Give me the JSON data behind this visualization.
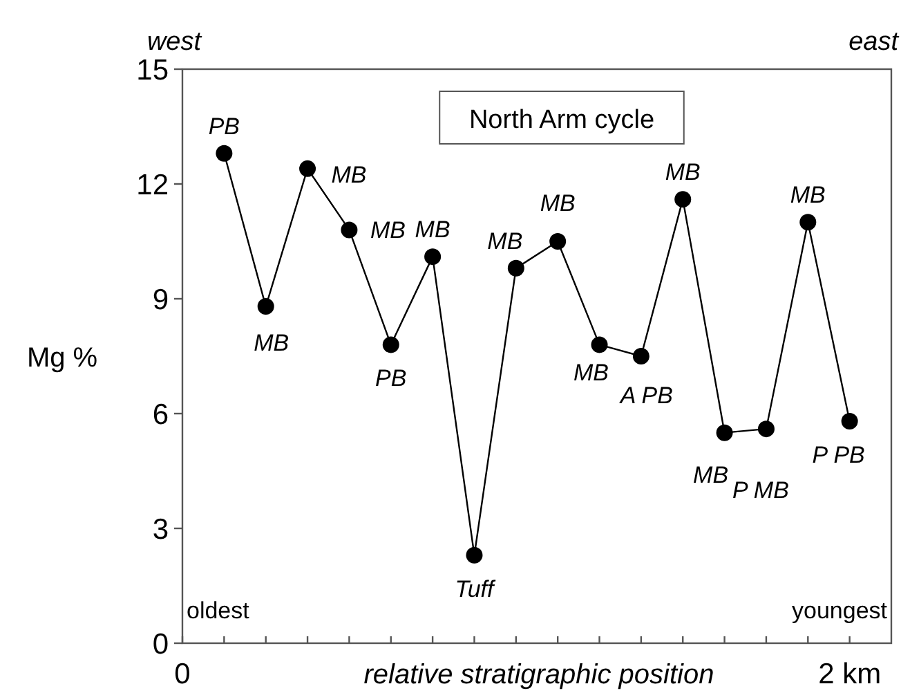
{
  "chart_data": {
    "type": "line",
    "xlabel": "relative stratigraphic position",
    "ylabel": "Mg %",
    "x": [
      0.125,
      0.25,
      0.375,
      0.5,
      0.625,
      0.75,
      0.875,
      1.0,
      1.125,
      1.25,
      1.375,
      1.5,
      1.625,
      1.75,
      1.875,
      2.0
    ],
    "values": [
      12.8,
      8.8,
      12.4,
      10.8,
      7.8,
      10.1,
      2.3,
      9.8,
      10.5,
      7.8,
      7.5,
      11.6,
      5.5,
      5.6,
      11.0,
      5.8
    ],
    "color": "#000000",
    "marker": "circle",
    "line_style": "solid",
    "xlim": [
      0,
      2.125
    ],
    "xticks": [
      {
        "value": 0,
        "label": "0"
      },
      {
        "value": 0.125,
        "label": null
      },
      {
        "value": 0.25,
        "label": null
      },
      {
        "value": 0.375,
        "label": null
      },
      {
        "value": 0.5,
        "label": null
      },
      {
        "value": 0.625,
        "label": null
      },
      {
        "value": 0.75,
        "label": null
      },
      {
        "value": 0.875,
        "label": null
      },
      {
        "value": 1.0,
        "label": null
      },
      {
        "value": 1.125,
        "label": null
      },
      {
        "value": 1.25,
        "label": null
      },
      {
        "value": 1.375,
        "label": null
      },
      {
        "value": 1.5,
        "label": null
      },
      {
        "value": 1.625,
        "label": null
      },
      {
        "value": 1.75,
        "label": null
      },
      {
        "value": 1.875,
        "label": null
      },
      {
        "value": 2.0,
        "label": "2 km"
      }
    ],
    "ylim": [
      0,
      15
    ],
    "yticks": [
      0,
      3,
      6,
      9,
      12,
      15
    ],
    "grid": false,
    "annotations": [
      "North Arm cycle",
      "west",
      "east",
      "oldest",
      "youngest",
      {
        "text": "PB",
        "x": 0.125,
        "y": 12.8
      },
      {
        "text": "MB",
        "x": 0.25,
        "y": 8.8
      },
      {
        "text": "MB",
        "x": 0.375,
        "y": 12.4
      },
      {
        "text": "MB",
        "x": 0.5,
        "y": 10.8
      },
      {
        "text": "PB",
        "x": 0.625,
        "y": 7.8
      },
      {
        "text": "MB",
        "x": 0.75,
        "y": 10.1
      },
      {
        "text": "Tuff",
        "x": 0.875,
        "y": 2.3
      },
      {
        "text": "MB",
        "x": 1.0,
        "y": 9.8
      },
      {
        "text": "MB",
        "x": 1.125,
        "y": 10.5
      },
      {
        "text": "MB",
        "x": 1.25,
        "y": 7.8
      },
      {
        "text": "A PB",
        "x": 1.375,
        "y": 7.5
      },
      {
        "text": "MB",
        "x": 1.5,
        "y": 11.6
      },
      {
        "text": "MB",
        "x": 1.625,
        "y": 5.5
      },
      {
        "text": "P MB",
        "x": 1.75,
        "y": 5.6
      },
      {
        "text": "MB",
        "x": 1.875,
        "y": 11.0
      },
      {
        "text": "P PB",
        "x": 2.0,
        "y": 5.8
      }
    ]
  }
}
